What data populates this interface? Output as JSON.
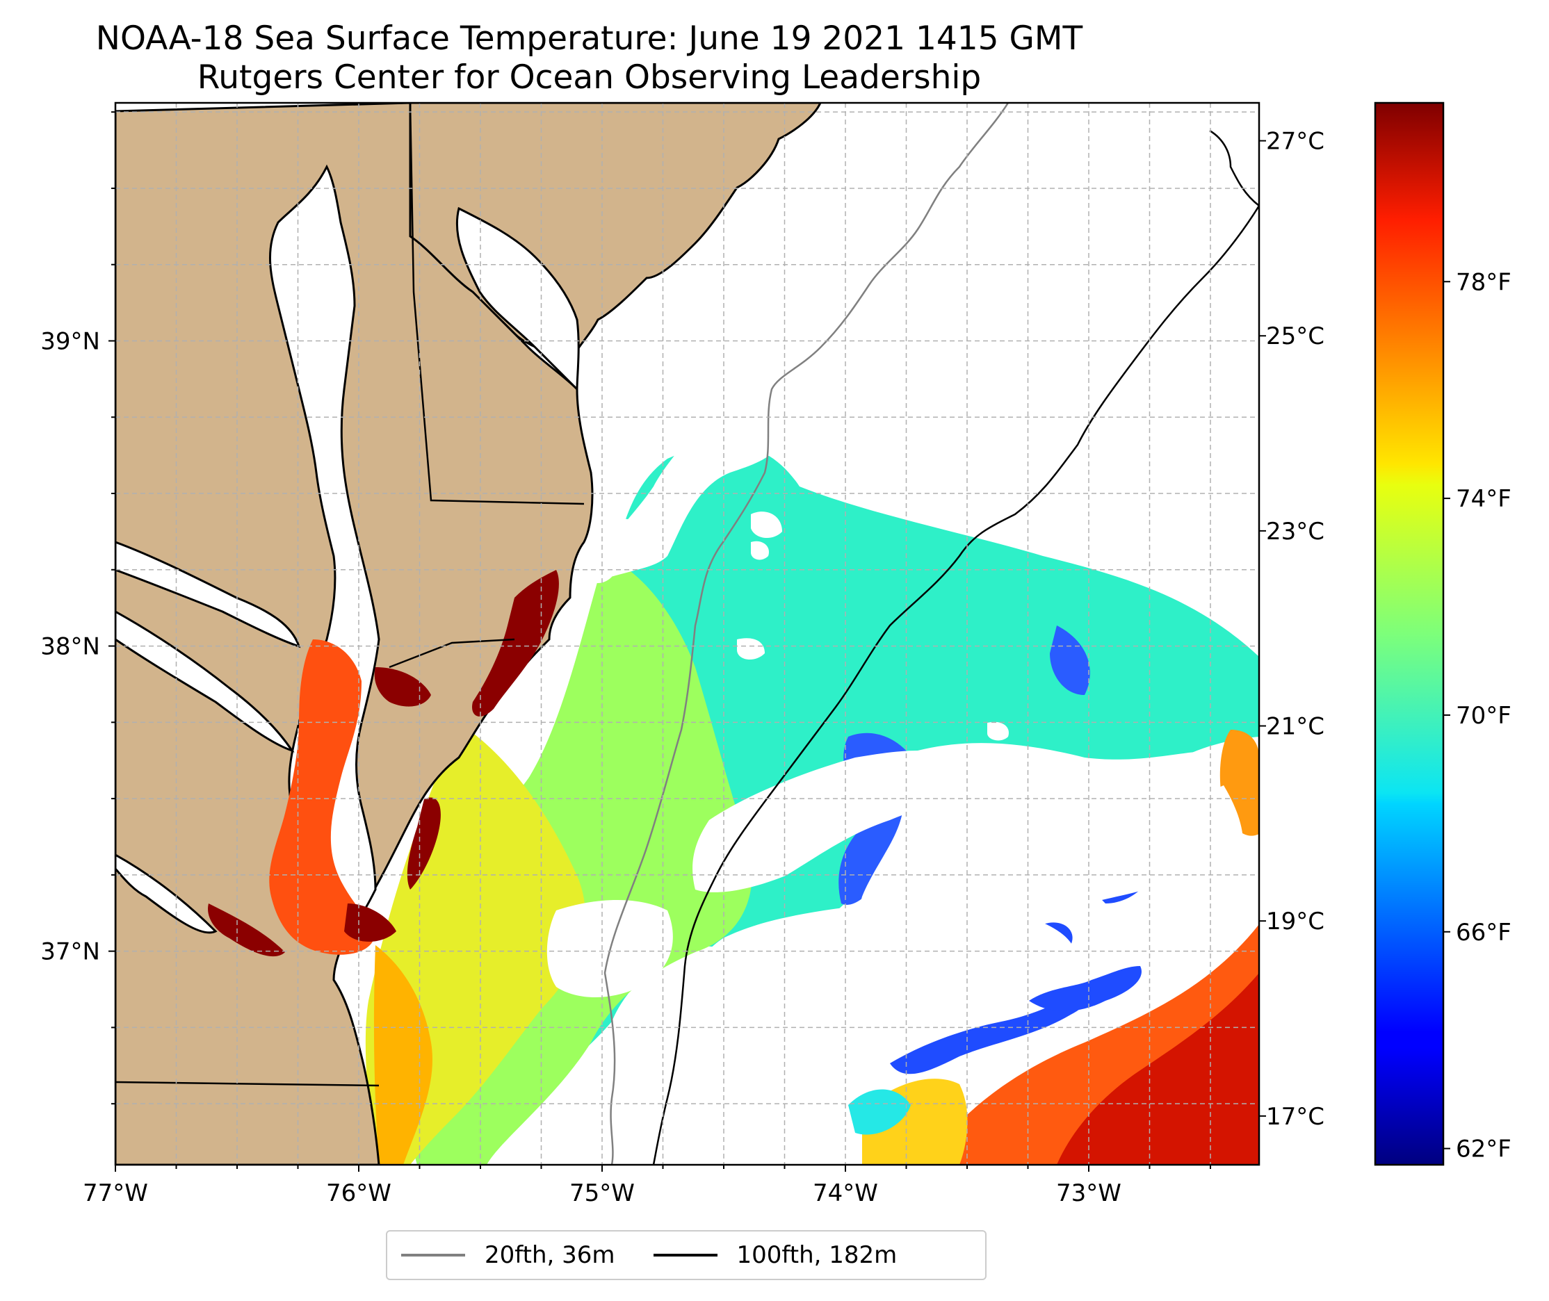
{
  "title": "NOAA-18 Sea Surface Temperature: June 19 2021 1415 GMT",
  "subtitle": "Rutgers Center for Ocean Observing Leadership",
  "colors": {
    "land": "#d2b48c",
    "water_nodata": "#ffffff",
    "contour_20fth": "#808080",
    "contour_100fth": "#000000",
    "grid": "#b0b0b0"
  },
  "map": {
    "lon_labels": [
      "77°W",
      "76°W",
      "75°W",
      "74°W",
      "73°W"
    ],
    "lat_labels": [
      "39°N",
      "38°N",
      "37°N"
    ],
    "lon_range": [
      -77.0,
      -72.3
    ],
    "lat_range": [
      36.3,
      39.78
    ]
  },
  "colorbar": {
    "colormap": "jet",
    "range_f": [
      61.7,
      81.3
    ],
    "celsius_labels": [
      "27°C",
      "25°C",
      "23°C",
      "21°C",
      "19°C",
      "17°C"
    ],
    "celsius_values": [
      27,
      25,
      23,
      21,
      19,
      17
    ],
    "fahrenheit_labels": [
      "78°F",
      "74°F",
      "70°F",
      "66°F",
      "62°F"
    ],
    "fahrenheit_values": [
      78,
      74,
      70,
      66,
      62
    ]
  },
  "legend": {
    "items": [
      {
        "label": "20fth, 36m",
        "color": "#808080"
      },
      {
        "label": "100fth, 182m",
        "color": "#000000"
      }
    ]
  }
}
